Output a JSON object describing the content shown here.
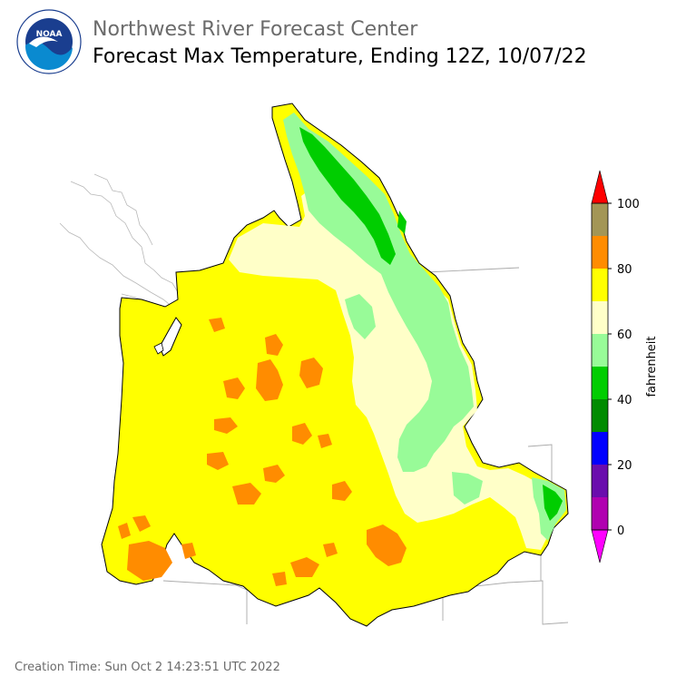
{
  "header": {
    "organization": "Northwest River Forecast Center",
    "title": "Forecast Max Temperature, Ending 12Z, 10/07/22"
  },
  "logo": {
    "text": "NOAA",
    "ring_text": "NATIONAL OCEANIC AND ATMOSPHERIC ADMINISTRATION · U.S. DEPARTMENT OF COMMERCE",
    "colors": {
      "ring": "#ffffff",
      "sky": "#1a3e8f",
      "sea": "#0a8ad0"
    }
  },
  "colorbar": {
    "label": "fahrenheit",
    "ticks": [
      "100",
      "80",
      "60",
      "40",
      "20",
      "0"
    ],
    "bins": [
      {
        "from": 90,
        "to": 100,
        "color": "#a39656"
      },
      {
        "from": 80,
        "to": 90,
        "color": "#ff8c00"
      },
      {
        "from": 70,
        "to": 80,
        "color": "#ffff00"
      },
      {
        "from": 60,
        "to": 70,
        "color": "#ffffc8"
      },
      {
        "from": 50,
        "to": 60,
        "color": "#98fb98"
      },
      {
        "from": 40,
        "to": 50,
        "color": "#00cd00"
      },
      {
        "from": 30,
        "to": 40,
        "color": "#008b00"
      },
      {
        "from": 20,
        "to": 30,
        "color": "#0000ff"
      },
      {
        "from": 10,
        "to": 20,
        "color": "#6a0dad"
      },
      {
        "from": 0,
        "to": 10,
        "color": "#b000b0"
      }
    ],
    "over_color": "#ff0000",
    "under_color": "#ff00ff"
  },
  "footer": {
    "creation": "Creation Time: Sun Oct 2 14:23:51 UTC 2022"
  }
}
